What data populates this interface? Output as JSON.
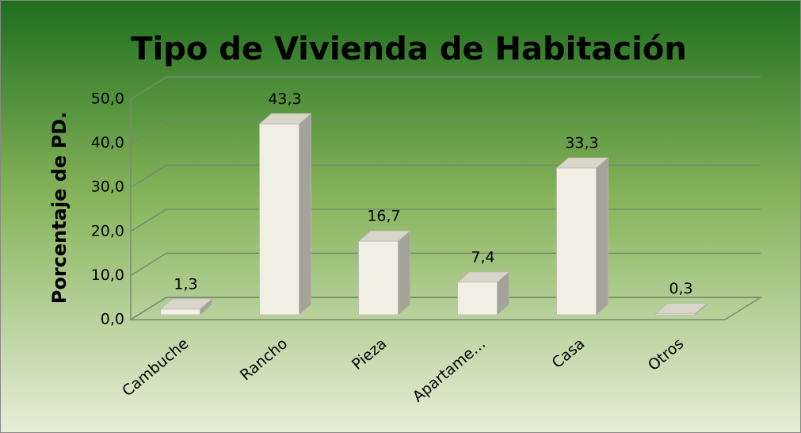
{
  "chart_data": {
    "type": "bar3d",
    "title": "Tipo de Vivienda de Habitación",
    "y_label": "Porcentaje de  PD.",
    "categories": [
      "Cambuche",
      "Rancho",
      "Pieza",
      "Apartame…",
      "Casa",
      "Otros"
    ],
    "values": [
      1.3,
      43.3,
      16.7,
      7.4,
      33.3,
      0.3
    ],
    "value_labels": [
      "1,3",
      "43,3",
      "16,7",
      "7,4",
      "33,3",
      "0,3"
    ],
    "color": "#f1efe4",
    "ylim": [
      0,
      50
    ],
    "yticks": [
      {
        "value": 0,
        "label": "0,0"
      },
      {
        "value": 10,
        "label": "10,0"
      },
      {
        "value": 20,
        "label": "20,0"
      },
      {
        "value": 30,
        "label": "30,0"
      },
      {
        "value": 40,
        "label": "40,0"
      },
      {
        "value": 50,
        "label": "50,0"
      }
    ],
    "grid": true
  }
}
